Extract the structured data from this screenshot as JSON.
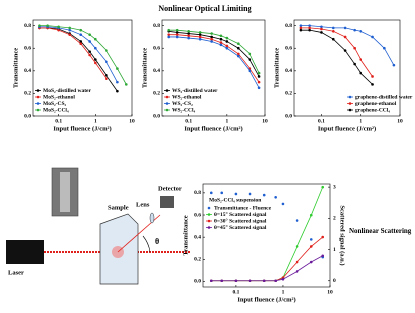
{
  "figure": {
    "title": "Nonlinear Optical Limiting"
  },
  "diagram": {
    "laser": "Laser",
    "sample": "Sample",
    "lens": "Lens",
    "detector": "Detector",
    "angle": "θ"
  },
  "chart_data": [
    {
      "type": "line",
      "x_scale": "log",
      "xlim": [
        0.02,
        10
      ],
      "ylim": [
        0,
        0.85
      ],
      "xticks": [
        0.1,
        1,
        10
      ],
      "yticks": [
        {
          "value": 0,
          "label": "0.0"
        },
        0.2,
        0.4,
        0.6,
        0.8
      ],
      "xlabel": "Input fluence (J/cm²)",
      "ylabel": "Transmittance",
      "legend": "lower left",
      "x": [
        0.03,
        0.05,
        0.1,
        0.2,
        0.4,
        0.7,
        1,
        2,
        4,
        7
      ],
      "series": [
        {
          "name": "MoS₂-distilled water",
          "color": "#000000",
          "values": [
            0.78,
            0.78,
            0.77,
            0.73,
            0.66,
            0.57,
            0.5,
            0.36,
            0.22,
            null
          ]
        },
        {
          "name": "MoS₂-ethanol",
          "color": "#e0201b",
          "values": [
            0.78,
            0.78,
            0.76,
            0.72,
            0.64,
            0.54,
            0.47,
            0.33,
            null,
            null
          ]
        },
        {
          "name": "MoS₂-CS₂",
          "color": "#1f5fd0",
          "values": [
            0.79,
            0.79,
            0.78,
            0.76,
            0.72,
            0.66,
            0.6,
            0.48,
            0.3,
            null
          ]
        },
        {
          "name": "MoS₂-CCl₄",
          "color": "#2ea836",
          "values": [
            0.8,
            0.8,
            0.79,
            0.78,
            0.76,
            0.72,
            0.68,
            0.58,
            0.42,
            0.28
          ]
        }
      ]
    },
    {
      "type": "line",
      "x_scale": "log",
      "xlim": [
        0.02,
        10
      ],
      "ylim": [
        0,
        0.85
      ],
      "xticks": [
        0.1,
        1,
        10
      ],
      "yticks": [
        {
          "value": 0,
          "label": "0.0"
        },
        0.2,
        0.4,
        0.6,
        0.8
      ],
      "xlabel": "Input fluence (J/cm²)",
      "ylabel": "Transmittance",
      "legend": "lower left",
      "x": [
        0.03,
        0.05,
        0.1,
        0.2,
        0.4,
        0.7,
        1,
        2,
        4,
        7
      ],
      "series": [
        {
          "name": "WS₂-distilled water",
          "color": "#000000",
          "values": [
            0.75,
            0.74,
            0.73,
            0.72,
            0.7,
            0.68,
            0.66,
            0.6,
            0.5,
            0.35
          ]
        },
        {
          "name": "WS₂-ethanol",
          "color": "#e0201b",
          "values": [
            0.72,
            0.72,
            0.71,
            0.7,
            0.68,
            0.65,
            0.62,
            0.55,
            0.42,
            0.3
          ]
        },
        {
          "name": "WS₂-CS₂",
          "color": "#1f5fd0",
          "values": [
            0.7,
            0.7,
            0.69,
            0.68,
            0.66,
            0.63,
            0.6,
            0.53,
            0.4,
            0.25
          ]
        },
        {
          "name": "WS₂-CCl₄",
          "color": "#2ea836",
          "values": [
            0.76,
            0.76,
            0.75,
            0.74,
            0.73,
            0.71,
            0.69,
            0.64,
            0.55,
            0.38
          ]
        }
      ]
    },
    {
      "type": "line",
      "x_scale": "log",
      "xlim": [
        0.02,
        10
      ],
      "ylim": [
        0,
        0.85
      ],
      "xticks": [
        0.1,
        1,
        10
      ],
      "yticks": [
        {
          "value": 0,
          "label": "0.0"
        },
        0.2,
        0.4,
        0.6,
        0.8
      ],
      "xlabel": "Input fluence (J/cm²)",
      "ylabel": "Transmittance",
      "legend": "lower right",
      "x": [
        0.03,
        0.05,
        0.1,
        0.2,
        0.4,
        0.7,
        1,
        2,
        4,
        7
      ],
      "series": [
        {
          "name": "graphene-distilled water",
          "color": "#1f5fd0",
          "values": [
            0.8,
            0.8,
            0.79,
            0.78,
            0.78,
            0.76,
            0.75,
            0.7,
            0.6,
            0.45
          ]
        },
        {
          "name": "graphene-ethanol",
          "color": "#e0201b",
          "values": [
            0.78,
            0.78,
            0.77,
            0.75,
            0.7,
            0.6,
            0.5,
            0.35,
            null,
            null
          ]
        },
        {
          "name": "graphene-CCl₄",
          "color": "#000000",
          "values": [
            0.76,
            0.76,
            0.74,
            0.68,
            0.58,
            0.46,
            0.38,
            0.28,
            null,
            null
          ]
        }
      ]
    },
    {
      "type": "line",
      "x_scale": "log",
      "title": "Nonlinear Scattering",
      "annotation": "MoS₂-CCl₄ suspension",
      "xlim": [
        0.02,
        10
      ],
      "ylim": [
        -0.05,
        0.88
      ],
      "y2lim": [
        -0.2,
        3.1
      ],
      "xticks": [
        0.1,
        1,
        10
      ],
      "yticks": [
        {
          "value": 0,
          "label": "0.0"
        },
        0.2,
        0.4,
        0.6,
        0.8
      ],
      "y2ticks": [
        0,
        1,
        2,
        3
      ],
      "xlabel": "Input fluence (J/cm²)",
      "ylabel": "Transmittance",
      "y2label": "Scattered signal (a.u.)",
      "legend": "upper left",
      "x": [
        0.03,
        0.05,
        0.1,
        0.2,
        0.4,
        0.7,
        1,
        2,
        4,
        7
      ],
      "series": [
        {
          "name": "Transmittance - Fluence",
          "color": "#1f5fd0",
          "line": false,
          "values": [
            0.8,
            0.8,
            0.79,
            0.79,
            0.78,
            0.76,
            0.7,
            0.55,
            0.38,
            0.22
          ]
        },
        {
          "name": "θ=15° Scattered signal",
          "color": "#2ecc2e",
          "axis": "y2",
          "values": [
            0,
            0,
            0,
            0,
            0,
            0,
            0.1,
            1.1,
            2.1,
            3.0
          ]
        },
        {
          "name": "θ=30° Scattered signal",
          "color": "#e0201b",
          "axis": "y2",
          "values": [
            0,
            0,
            0,
            0,
            0,
            0,
            0.1,
            0.6,
            1.1,
            1.4
          ]
        },
        {
          "name": "θ=45° Scattered signal",
          "color": "#6a1b9a",
          "axis": "y2",
          "values": [
            0,
            0,
            0,
            0,
            0,
            0,
            0.05,
            0.3,
            0.6,
            0.8
          ]
        }
      ]
    }
  ]
}
